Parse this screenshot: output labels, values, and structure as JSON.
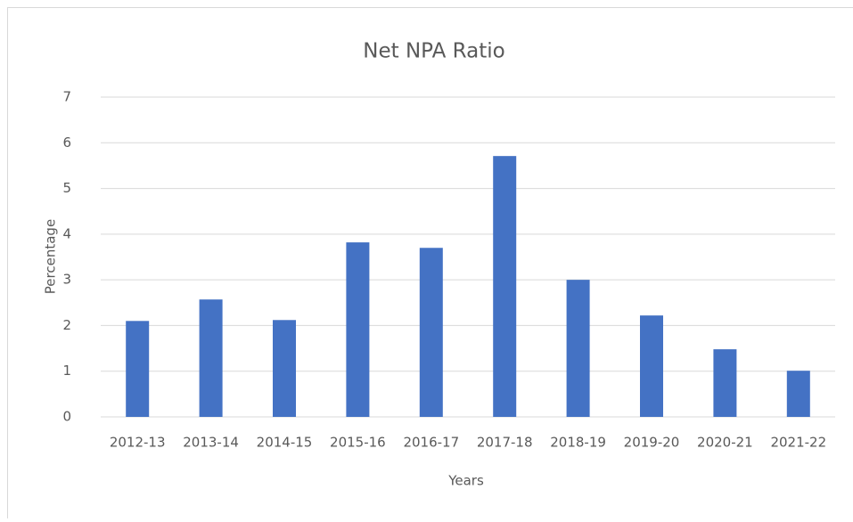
{
  "chart_data": {
    "type": "bar",
    "title": "Net NPA Ratio",
    "x_label": "Years",
    "y_label": "Percentage",
    "categories": [
      "2012-13",
      "2013-14",
      "2014-15",
      "2015-16",
      "2016-17",
      "2017-18",
      "2018-19",
      "2019-20",
      "2020-21",
      "2021-22"
    ],
    "values": [
      2.1,
      2.57,
      2.12,
      3.82,
      3.7,
      5.71,
      3.0,
      2.22,
      1.48,
      1.01
    ],
    "color": "#4472c4",
    "ylim": [
      0,
      7
    ],
    "yticks": [
      0,
      1,
      2,
      3,
      4,
      5,
      6,
      7
    ],
    "grid": true
  }
}
